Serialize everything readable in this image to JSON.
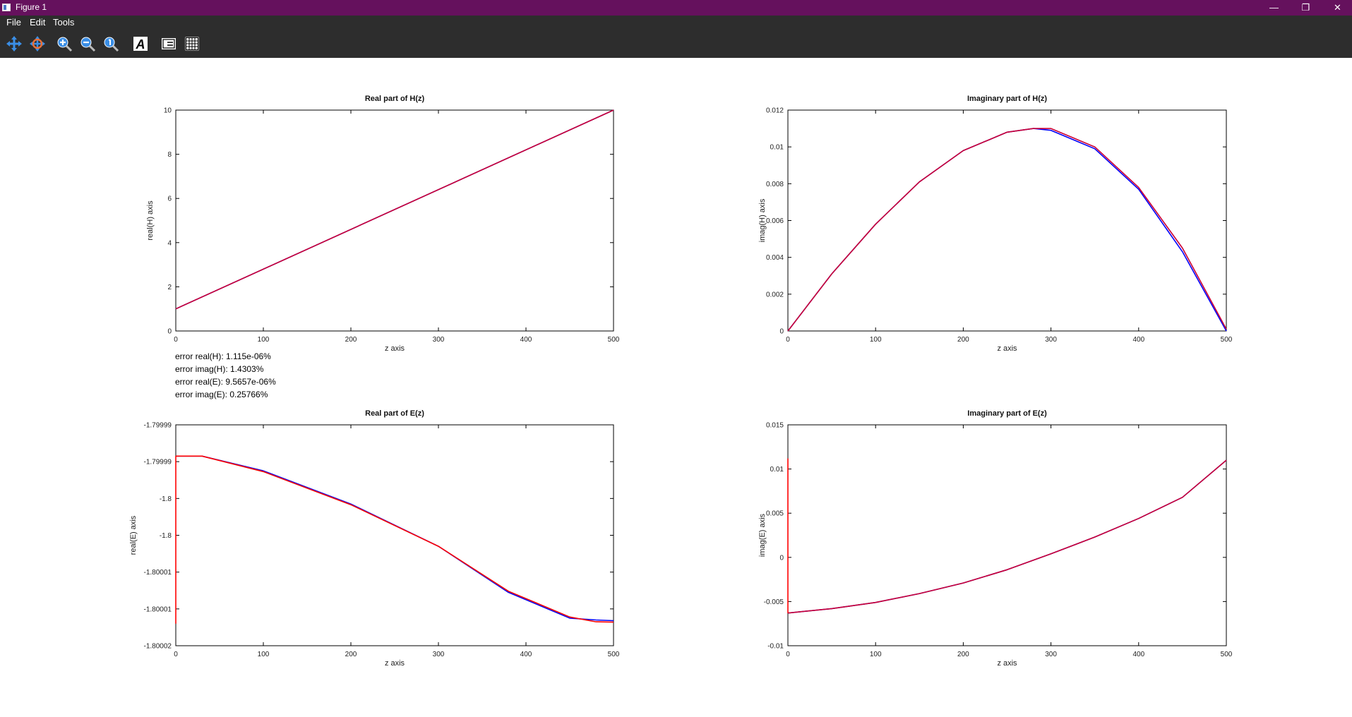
{
  "window": {
    "title": "Figure 1",
    "controls": {
      "minimize": "—",
      "restore": "❐",
      "close": "✕"
    }
  },
  "menu": {
    "file": "File",
    "edit": "Edit",
    "tools": "Tools"
  },
  "toolbar": {
    "tools": [
      "pan-icon",
      "rotate-icon",
      "zoom-in-icon",
      "zoom-out-icon",
      "autoscale-icon",
      "text-tool-icon",
      "legend-toggle-icon",
      "grid-toggle-icon"
    ]
  },
  "colors": {
    "titlebar": "#65115d",
    "toolbar": "#2d2d2d",
    "series_blue": "#0000ff",
    "series_red": "#ff0000"
  },
  "error_text": {
    "real_H": "error real(H):  1.115e-06%",
    "imag_H": "error imag(H):    1.4303%",
    "real_E": "error real(E):  9.5657e-06%",
    "imag_E": "error imag(E):    0.25766%"
  },
  "chart_data": [
    {
      "type": "line",
      "title": "Real part of H(z)",
      "xlabel": "z axis",
      "ylabel": "real(H) axis",
      "xlim": [
        0,
        500
      ],
      "ylim": [
        0,
        10
      ],
      "xticks": [
        "0",
        "100",
        "200",
        "300",
        "400",
        "500"
      ],
      "yticks": [
        "0",
        "2",
        "4",
        "6",
        "8",
        "10"
      ],
      "series": [
        {
          "color": "#0000ff",
          "x": [
            0,
            500
          ],
          "y": [
            1,
            10
          ]
        },
        {
          "color": "#cc0033",
          "x": [
            0,
            500
          ],
          "y": [
            1,
            10
          ]
        }
      ]
    },
    {
      "type": "line",
      "title": "Imaginary part of H(z)",
      "xlabel": "z axis",
      "ylabel": "imag(H) axis",
      "xlim": [
        0,
        500
      ],
      "ylim": [
        0,
        0.012
      ],
      "xticks": [
        "0",
        "100",
        "200",
        "300",
        "400",
        "500"
      ],
      "yticks": [
        "0",
        "0.002",
        "0.004",
        "0.006",
        "0.008",
        "0.01",
        "0.012"
      ],
      "series": [
        {
          "color": "#0000ff",
          "x": [
            0,
            50,
            100,
            150,
            200,
            250,
            280,
            300,
            350,
            400,
            450,
            500
          ],
          "y": [
            0,
            0.0031,
            0.0058,
            0.0081,
            0.0098,
            0.0108,
            0.011,
            0.0109,
            0.0099,
            0.0077,
            0.0043,
            0.0
          ]
        },
        {
          "color": "#cc0033",
          "x": [
            0,
            50,
            100,
            150,
            200,
            250,
            280,
            300,
            350,
            400,
            450,
            500
          ],
          "y": [
            0,
            0.0031,
            0.0058,
            0.0081,
            0.0098,
            0.0108,
            0.011,
            0.011,
            0.01,
            0.0078,
            0.0045,
            0.0001
          ]
        }
      ]
    },
    {
      "type": "line",
      "title": "Real part of E(z)",
      "xlabel": "z axis",
      "ylabel": "real(E) axis",
      "xlim": [
        0,
        500
      ],
      "ylim": [
        0,
        6
      ],
      "xticks": [
        "0",
        "100",
        "200",
        "300",
        "400",
        "500"
      ],
      "yticks": [
        "-1.80002",
        "-1.80001",
        "-1.80001",
        "-1.8",
        "-1.8",
        "-1.79999",
        "-1.79999"
      ],
      "series": [
        {
          "color": "#0000ff",
          "x": [
            0,
            30,
            100,
            200,
            300,
            380,
            450,
            480,
            500
          ],
          "y": [
            5.15,
            5.15,
            4.75,
            3.85,
            2.7,
            1.45,
            0.75,
            0.7,
            0.68
          ]
        },
        {
          "color": "#ff0000",
          "x": [
            0,
            30,
            100,
            200,
            300,
            380,
            450,
            480,
            500
          ],
          "y": [
            5.15,
            5.15,
            4.73,
            3.83,
            2.7,
            1.48,
            0.78,
            0.65,
            0.64
          ]
        },
        {
          "color": "#ff0000",
          "x": [
            0,
            0
          ],
          "y": [
            0.6,
            5.15
          ]
        }
      ]
    },
    {
      "type": "line",
      "title": "Imaginary part of E(z)",
      "xlabel": "z axis",
      "ylabel": "imag(E) axis",
      "xlim": [
        0,
        500
      ],
      "ylim": [
        -0.01,
        0.015
      ],
      "xticks": [
        "0",
        "100",
        "200",
        "300",
        "400",
        "500"
      ],
      "yticks": [
        "-0.01",
        "-0.005",
        "0",
        "0.005",
        "0.01",
        "0.015"
      ],
      "series": [
        {
          "color": "#0000ff",
          "x": [
            0,
            50,
            100,
            150,
            200,
            250,
            300,
            350,
            400,
            450,
            500
          ],
          "y": [
            -0.0063,
            -0.0058,
            -0.0051,
            -0.0041,
            -0.0029,
            -0.0014,
            0.0004,
            0.0023,
            0.0044,
            0.0068,
            0.011
          ]
        },
        {
          "color": "#cc0033",
          "x": [
            0,
            50,
            100,
            150,
            200,
            250,
            300,
            350,
            400,
            450,
            500
          ],
          "y": [
            -0.0063,
            -0.0058,
            -0.0051,
            -0.0041,
            -0.0029,
            -0.0014,
            0.0004,
            0.0023,
            0.0044,
            0.0068,
            0.011
          ]
        },
        {
          "color": "#ff0000",
          "x": [
            0,
            0
          ],
          "y": [
            -0.0063,
            0.0112
          ]
        }
      ]
    }
  ]
}
